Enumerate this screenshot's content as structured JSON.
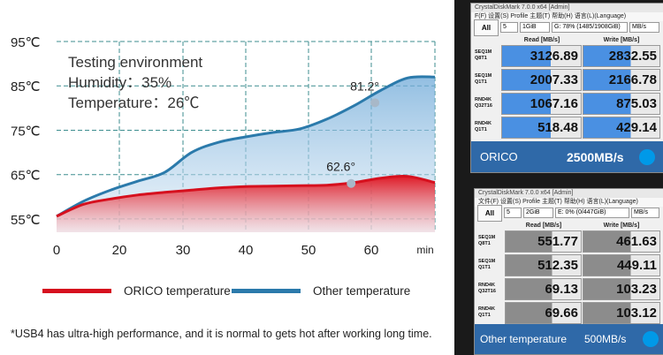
{
  "chart_data": {
    "type": "area",
    "x": [
      0,
      5,
      10,
      15,
      20,
      25,
      30,
      35,
      40,
      45,
      50,
      55,
      60,
      65,
      70
    ],
    "xticks": [
      "0",
      "20",
      "30",
      "40",
      "50",
      "60"
    ],
    "xunit": "min",
    "yticks": [
      "95℃",
      "85℃",
      "75℃",
      "65℃",
      "55℃"
    ],
    "ylim": [
      52,
      95
    ],
    "series": [
      {
        "name": "ORICO temperature",
        "color": "#d6101e",
        "values": [
          55.6,
          58.3,
          59.5,
          60.4,
          61.0,
          61.5,
          62.0,
          62.3,
          62.4,
          62.5,
          62.6,
          63.2,
          64.2,
          64.6,
          63.2
        ]
      },
      {
        "name": "Other temperature",
        "color": "#2b7aab",
        "values": [
          55.6,
          59.0,
          61.5,
          63.5,
          65.5,
          70.0,
          72.3,
          73.5,
          74.5,
          75.3,
          77.5,
          80.5,
          84.0,
          86.8,
          87.0
        ]
      }
    ],
    "annotations": [
      {
        "text": "81.2°",
        "x": 58.9,
        "y": 81.2,
        "series": 1
      },
      {
        "text": "62.6°",
        "x": 54.5,
        "y": 63.0,
        "series": 0
      }
    ],
    "info_lines": [
      "Testing environment",
      "Humidity：35%",
      "Temperature：26℃"
    ],
    "grid": true
  },
  "footnote": "*USB4 has ultra-high performance, and it is normal to gets hot after working long time.",
  "cdm_top": {
    "title": "CrystalDiskMark 7.0.0 x64 [Admin]",
    "menu": "F(F)  设置(S)  Profile  主题(T)  帮助(H)  语言(L)(Language)",
    "all_label": "All",
    "count": "5",
    "size": "1GiB",
    "drive": "G: 78% (1485/1908GiB)",
    "unit": "MB/s",
    "read_header": "Read [MB/s]",
    "write_header": "Write [MB/s]",
    "rows": [
      {
        "l1": "SEQ1M",
        "l2": "Q8T1",
        "read": "3126.89",
        "write": "2832.55"
      },
      {
        "l1": "SEQ1M",
        "l2": "Q1T1",
        "read": "2007.33",
        "write": "2166.78"
      },
      {
        "l1": "RND4K",
        "l2": "Q32T16",
        "read": "1067.16",
        "write": "875.03"
      },
      {
        "l1": "RND4K",
        "l2": "Q1T1",
        "read": "518.48",
        "write": "429.14"
      }
    ],
    "footer_name": "ORICO",
    "footer_speed": "2500MB/s",
    "bar_color": "#4a90e2"
  },
  "cdm_bottom": {
    "title": "CrystalDiskMark 7.0.0 x64 [Admin]",
    "menu": "文件(F)  设置(S)  Profile  主题(T)  帮助(H)  语言(L)(Language)",
    "all_label": "All",
    "count": "5",
    "size": "2GiB",
    "drive": "E: 0% (0/447GiB)",
    "unit": "MB/s",
    "read_header": "Read [MB/s]",
    "write_header": "Write [MB/s]",
    "rows": [
      {
        "l1": "SEQ1M",
        "l2": "Q8T1",
        "read": "551.77",
        "write": "461.63"
      },
      {
        "l1": "SEQ1M",
        "l2": "Q1T1",
        "read": "512.35",
        "write": "449.11"
      },
      {
        "l1": "RND4K",
        "l2": "Q32T16",
        "read": "69.13",
        "write": "103.23"
      },
      {
        "l1": "RND4K",
        "l2": "Q1T1",
        "read": "69.66",
        "write": "103.12"
      }
    ],
    "footer_name": "Other temperature",
    "footer_speed": "500MB/s",
    "bar_color": "#8c8c8c"
  }
}
